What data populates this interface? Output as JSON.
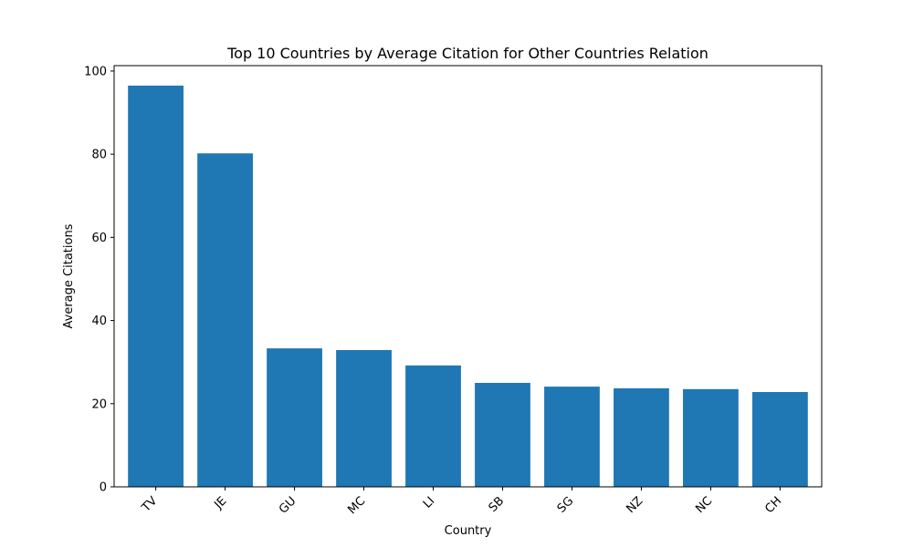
{
  "chart_data": {
    "type": "bar",
    "title": "Top 10 Countries by Average Citation for Other Countries Relation",
    "xlabel": "Country",
    "ylabel": "Average Citations",
    "categories": [
      "TV",
      "JE",
      "GU",
      "MC",
      "LI",
      "SB",
      "SG",
      "NZ",
      "NC",
      "CH"
    ],
    "values": [
      96.5,
      80.2,
      33.3,
      32.9,
      29.2,
      25.0,
      24.1,
      23.7,
      23.5,
      22.8
    ],
    "ylim": [
      0,
      101.3
    ],
    "yticks": [
      0,
      20,
      40,
      60,
      80,
      100
    ],
    "bar_color": "#1f77b4",
    "grid": false,
    "legend": "none"
  }
}
